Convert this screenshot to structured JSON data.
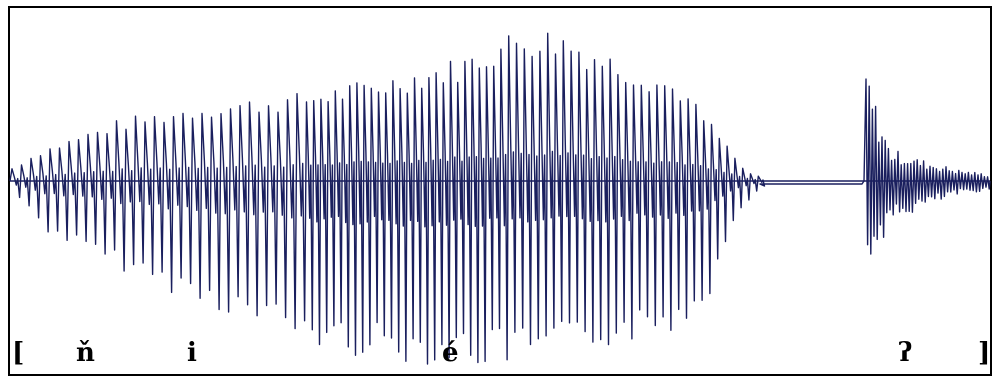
{
  "waveform": {
    "stroke_color": "#1a1f5e",
    "frame_color": "#000000",
    "background": "#ffffff"
  },
  "transcription": {
    "open_bracket": "[",
    "segments": [
      "ň",
      "i",
      "é",
      "ʔ"
    ],
    "close_bracket": "]"
  }
}
